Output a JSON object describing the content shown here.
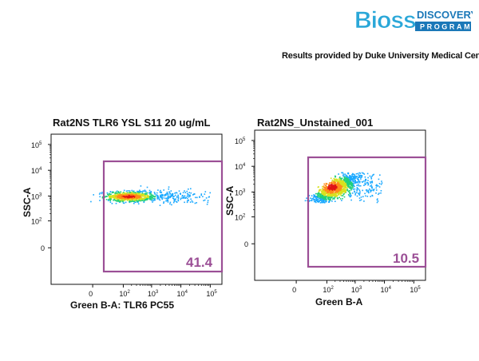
{
  "branding": {
    "logo_text": "Bioss",
    "logo_word_1": "DISCOVERY",
    "logo_word_2": "PROGRAM",
    "credit": "Results provided by Duke University Medical Center"
  },
  "colors": {
    "gate": "#9b4f96",
    "logo_blue": "#2aa7d8",
    "logo_bar": "#1b78b8"
  },
  "chart_data": [
    {
      "type": "scatter",
      "title": "Rat2NS TLR6 YSL S11 20 ug/mL",
      "xlabel": "Green B-A: TLR6 PC55",
      "ylabel": "SSC-A",
      "x_scale": "biexponential",
      "y_scale": "biexponential",
      "x_ticks": [
        "0",
        "10^2",
        "10^3",
        "10^4",
        "10^5"
      ],
      "y_ticks": [
        "0",
        "10^2",
        "10^3",
        "10^4",
        "10^5"
      ],
      "population": {
        "x_center": 150,
        "y_center": 1000,
        "x_range": [
          -200,
          100000
        ],
        "y_range": [
          700,
          1500
        ]
      },
      "gate": {
        "x_range": [
          250,
          200000
        ],
        "y_range": [
          -50,
          40000
        ],
        "percent": "41.4"
      }
    },
    {
      "type": "scatter",
      "title": "Rat2NS_Unstained_001",
      "xlabel": "Green B-A",
      "ylabel": "SSC-A",
      "x_scale": "biexponential",
      "y_scale": "biexponential",
      "x_ticks": [
        "0",
        "10^2",
        "10^3",
        "10^4",
        "10^5"
      ],
      "y_ticks": [
        "0",
        "10^2",
        "10^3",
        "10^4",
        "10^5"
      ],
      "population": {
        "x_center": 150,
        "y_center": 1600,
        "x_range": [
          -200,
          8000
        ],
        "y_range": [
          400,
          6000
        ]
      },
      "gate": {
        "x_range": [
          250,
          200000
        ],
        "y_range": [
          -50,
          40000
        ],
        "percent": "10.5"
      }
    }
  ]
}
